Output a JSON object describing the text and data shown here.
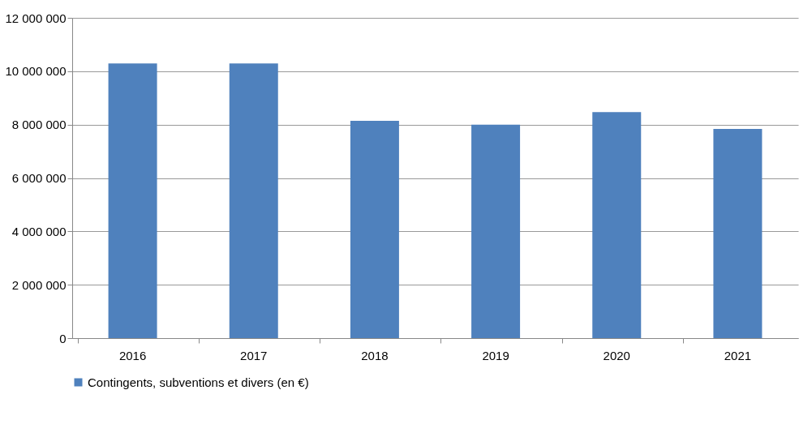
{
  "chart_data": {
    "type": "bar",
    "categories": [
      "2016",
      "2017",
      "2018",
      "2019",
      "2020",
      "2021"
    ],
    "series": [
      {
        "name": "Contingents, subventions et divers (en €)",
        "color": "#4f81bd",
        "values": [
          10290000,
          10290000,
          8140000,
          8000000,
          8470000,
          7840000
        ]
      }
    ],
    "ylim": [
      0,
      12000000
    ],
    "yticks": [
      {
        "value": 0,
        "label": "0"
      },
      {
        "value": 2000000,
        "label": "2 000 000"
      },
      {
        "value": 4000000,
        "label": "4 000 000"
      },
      {
        "value": 6000000,
        "label": "6 000 000"
      },
      {
        "value": 8000000,
        "label": "8 000 000"
      },
      {
        "value": 10000000,
        "label": "10 000 000"
      },
      {
        "value": 12000000,
        "label": "12 000 000"
      }
    ],
    "grid": "y",
    "legend": "bottom"
  }
}
